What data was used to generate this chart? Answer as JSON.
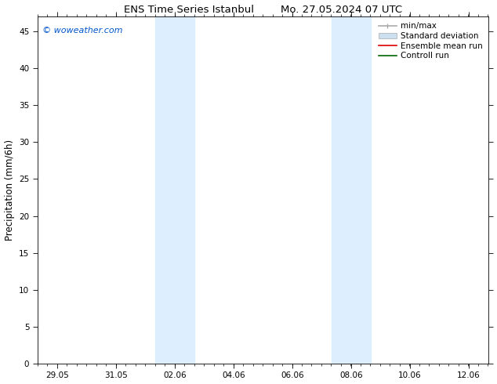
{
  "title_left": "ENS Time Series Istanbul",
  "title_right": "Mo. 27.05.2024 07 UTC",
  "ylabel": "Precipitation (mm/6h)",
  "background_color": "#ffffff",
  "plot_bg_color": "#ffffff",
  "shaded_band_color": "#ddeeff",
  "ylim": [
    0,
    47
  ],
  "yticks": [
    0,
    5,
    10,
    15,
    20,
    25,
    30,
    35,
    40,
    45
  ],
  "xtick_labels": [
    "29.05",
    "31.05",
    "02.06",
    "04.06",
    "06.06",
    "08.06",
    "10.06",
    "12.06"
  ],
  "xtick_positions": [
    0,
    2,
    4,
    6,
    8,
    10,
    12,
    14
  ],
  "watermark": "© woweather.com",
  "watermark_color": "#0055cc",
  "legend_items": [
    {
      "label": "min/max",
      "color": "#aaaaaa",
      "lw": 1.2,
      "type": "line_with_caps"
    },
    {
      "label": "Standard deviation",
      "color": "#cce0f0",
      "lw": 5,
      "type": "patch"
    },
    {
      "label": "Ensemble mean run",
      "color": "#dd0000",
      "lw": 1.2,
      "type": "line"
    },
    {
      "label": "Controll run",
      "color": "#006600",
      "lw": 1.2,
      "type": "line"
    }
  ],
  "shaded_regions": [
    {
      "x_start": 3.33,
      "x_end": 4.0
    },
    {
      "x_start": 4.0,
      "x_end": 4.67
    },
    {
      "x_start": 9.33,
      "x_end": 10.0
    },
    {
      "x_start": 10.0,
      "x_end": 10.67
    }
  ],
  "xmin": -0.67,
  "xmax": 14.67,
  "minor_xtick_interval": 0.333,
  "title_fontsize": 9.5,
  "tick_fontsize": 7.5,
  "ylabel_fontsize": 8.5,
  "watermark_fontsize": 8,
  "legend_fontsize": 7.5
}
